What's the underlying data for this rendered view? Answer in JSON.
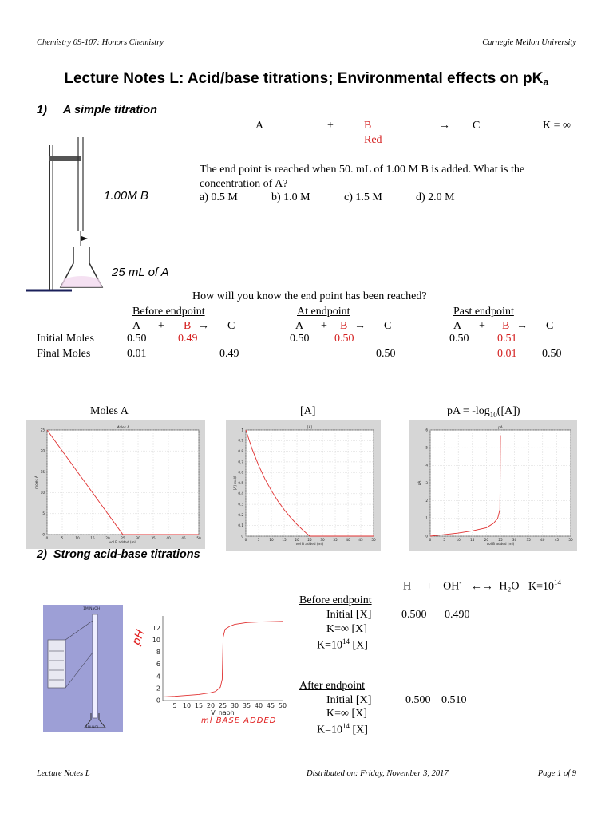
{
  "header": {
    "course": "Chemistry 09-107: Honors Chemistry",
    "university": "Carnegie Mellon University"
  },
  "title": {
    "main": "Lecture Notes L: Acid/base titrations; Environmental effects on pK",
    "sub": "a"
  },
  "section1": {
    "heading": "1)     A simple titration",
    "reaction": {
      "a": "A",
      "plus": "+",
      "b": "B",
      "b_note": "Red",
      "arrow": "→",
      "c": "C",
      "k": "K = ∞"
    },
    "burette_label": "1.00M B",
    "flask_label": "25 mL of A",
    "question": "The end point is reached when 50. mL of 1.00 M B is added. What is the concentration of A?",
    "choices": [
      "a) 0.5 M",
      "b) 1.0 M",
      "c) 1.5 M",
      "d) 2.0 M"
    ],
    "endpoint_question": "How will you know the end point has been reached?",
    "table": {
      "row_labels": [
        "Initial Moles",
        "Final Moles"
      ],
      "blocks": [
        {
          "title": "Before endpoint",
          "a": "A",
          "plus": "+",
          "b": "B",
          "arrow": "→",
          "c": "C",
          "initial": [
            "0.50",
            "0.49",
            ""
          ],
          "final": [
            "0.01",
            "",
            "0.49"
          ]
        },
        {
          "title": "At endpoint",
          "a": "A",
          "plus": "+",
          "b": "B",
          "arrow": "→",
          "c": "C",
          "initial": [
            "0.50",
            "0.50",
            ""
          ],
          "final": [
            "",
            "",
            "0.50"
          ]
        },
        {
          "title": "Past endpoint",
          "a": "A",
          "plus": "+",
          "b": "B",
          "arrow": "→",
          "c": "C",
          "initial": [
            "0.50",
            "0.51",
            ""
          ],
          "final": [
            "",
            "0.01",
            "0.50"
          ]
        }
      ]
    }
  },
  "plots": {
    "captions": [
      "Moles A",
      "[A]",
      "pA = -log",
      "10",
      "([A])"
    ]
  },
  "chart_data": [
    {
      "type": "line",
      "title": "Moles A",
      "xlabel": "vol B added (ml)",
      "ylabel": "moles A",
      "xlim": [
        0,
        50
      ],
      "ylim": [
        0,
        25
      ],
      "xticks": [
        "0",
        "5",
        "10",
        "15",
        "20",
        "25",
        "30",
        "35",
        "40",
        "45",
        "50"
      ],
      "yticks": [
        "0",
        "5",
        "10",
        "15",
        "20",
        "25"
      ],
      "x": [
        0,
        25,
        50
      ],
      "y": [
        25,
        0,
        0
      ],
      "grid": true,
      "color": "#e03030"
    },
    {
      "type": "line",
      "title": "[A]",
      "xlabel": "vol B added (ml)",
      "ylabel": "[A] mol/l",
      "xlim": [
        0,
        50
      ],
      "ylim": [
        0,
        1
      ],
      "xticks": [
        "0",
        "5",
        "10",
        "15",
        "20",
        "25",
        "30",
        "35",
        "40",
        "45",
        "50"
      ],
      "yticks": [
        "0",
        "0.1",
        "0.2",
        "0.3",
        "0.4",
        "0.5",
        "0.6",
        "0.7",
        "0.8",
        "0.9",
        "1"
      ],
      "x": [
        0,
        2.5,
        5,
        7.5,
        10,
        12.5,
        15,
        17.5,
        20,
        22.5,
        25,
        50
      ],
      "y": [
        1.0,
        0.818,
        0.667,
        0.538,
        0.429,
        0.333,
        0.25,
        0.176,
        0.111,
        0.053,
        0.0,
        0.0
      ],
      "grid": true,
      "color": "#e03030"
    },
    {
      "type": "line",
      "title": "pA",
      "xlabel": "vol B added (ml)",
      "ylabel": "pA",
      "xlim": [
        0,
        50
      ],
      "ylim": [
        0,
        6
      ],
      "xticks": [
        "0",
        "5",
        "10",
        "15",
        "20",
        "25",
        "30",
        "35",
        "40",
        "45",
        "50"
      ],
      "yticks": [
        "0",
        "1",
        "2",
        "3",
        "4",
        "5",
        "6"
      ],
      "x": [
        0,
        5,
        10,
        15,
        20,
        22.5,
        24,
        24.8,
        25
      ],
      "y": [
        0.0,
        0.087,
        0.176,
        0.301,
        0.477,
        0.727,
        1.0,
        1.5,
        5.7
      ],
      "grid": true,
      "color": "#e03030"
    },
    {
      "type": "line",
      "title": "",
      "xlabel": "V_naoh",
      "ylabel": "pH",
      "xlim": [
        0,
        50
      ],
      "ylim": [
        0,
        14
      ],
      "xticks": [
        "5",
        "10",
        "15",
        "20",
        "25",
        "30",
        "35",
        "40",
        "45",
        "50"
      ],
      "yticks": [
        "0",
        "2",
        "4",
        "6",
        "8",
        "10",
        "12"
      ],
      "x": [
        0,
        5,
        10,
        15,
        20,
        22,
        24,
        24.8,
        25,
        25.2,
        26,
        28,
        30,
        35,
        40,
        50
      ],
      "y": [
        0.6,
        0.7,
        0.85,
        1.0,
        1.3,
        1.5,
        2.2,
        3.5,
        7.0,
        10.5,
        11.8,
        12.3,
        12.6,
        12.9,
        13.0,
        13.1
      ],
      "grid": false,
      "color": "#e03030"
    }
  ],
  "section2": {
    "heading": "2)  Strong acid-base titrations",
    "reaction": {
      "h": "H",
      "h_sup": "+",
      "plus": "+",
      "oh": "OH",
      "oh_sup": "-",
      "arrow": "←→",
      "water": "H₂O",
      "k": "K=10",
      "k_sup": "14"
    },
    "burette_top": "1M NaOH",
    "flask_label": "1M HCl",
    "ph_handwritten": "pH",
    "xaxis_handwritten": "ml BASE ADDED",
    "before": {
      "title": "Before endpoint",
      "initial_label": "Initial [X]",
      "initial_values": [
        "0.500",
        "0.490"
      ],
      "kinf_label": "K=∞  [X]",
      "k14_label": "K=10",
      "k14_sup": "14",
      "k14_rest": " [X]"
    },
    "after": {
      "title": "After endpoint",
      "initial_label": "Initial [X]",
      "initial_values": [
        "0.500",
        "0.510"
      ],
      "kinf_label": "K=∞  [X]",
      "k14_label": "K=10",
      "k14_sup": "14",
      "k14_rest": " [X]"
    }
  },
  "footer": {
    "left": "Lecture Notes L",
    "center": "Distributed on: Friday, November 3, 2017",
    "right": "Page 1 of 9"
  }
}
